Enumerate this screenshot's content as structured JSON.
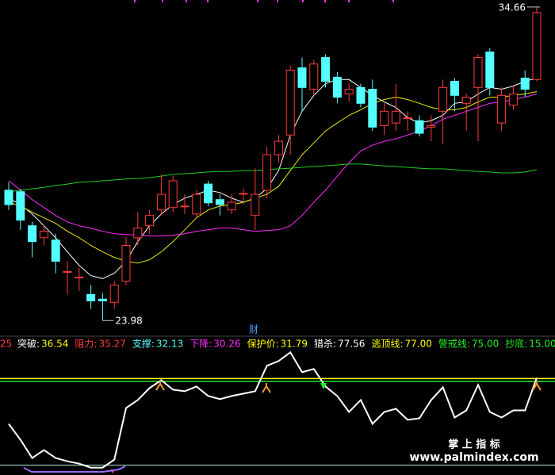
{
  "chart_data": [
    {
      "type": "candlestick",
      "ylim": [
        23.5,
        34.9
      ],
      "up_color": "#ff3b3b",
      "down_color": "#54ffff",
      "open": [
        28.42,
        28.37,
        27.21,
        26.8,
        26.72,
        25.65,
        25.46,
        24.87,
        24.71,
        24.6,
        25.32,
        26.8,
        27.21,
        27.75,
        27.83,
        27.88,
        27.61,
        28.63,
        28.1,
        27.75,
        28.31,
        27.56,
        28.42,
        29.63,
        30.3,
        32.59,
        31.86,
        32.94,
        32.27,
        31.7,
        31.92,
        31.86,
        30.62,
        30.71,
        30.89,
        30.79,
        30.57,
        31.11,
        32.13,
        31.38,
        31.92,
        33.13,
        30.71,
        31.32,
        32.24,
        32.19
      ],
      "close": [
        27.93,
        27.4,
        26.67,
        27.02,
        26.0,
        25.65,
        25.46,
        24.65,
        24.65,
        25.19,
        26.54,
        27.13,
        27.56,
        28.28,
        28.74,
        27.88,
        28.28,
        27.99,
        27.93,
        28.01,
        28.31,
        28.28,
        29.63,
        30.09,
        32.51,
        31.92,
        32.72,
        32.13,
        31.59,
        31.86,
        31.38,
        30.57,
        31.11,
        31.11,
        30.89,
        30.36,
        30.62,
        31.92,
        31.65,
        31.59,
        32.94,
        31.92,
        31.65,
        31.7,
        31.86,
        34.47
      ],
      "high": [
        28.69,
        28.47,
        27.34,
        27.21,
        26.94,
        26.0,
        25.78,
        25.19,
        24.92,
        25.32,
        26.8,
        27.67,
        27.75,
        28.96,
        28.9,
        28.28,
        28.42,
        28.74,
        28.28,
        28.28,
        28.47,
        29.17,
        29.9,
        30.3,
        32.67,
        32.94,
        32.86,
        33.05,
        32.45,
        32.05,
        32.05,
        32.19,
        31.38,
        32.05,
        31.11,
        30.97,
        30.97,
        32.19,
        32.24,
        31.7,
        33.05,
        33.26,
        31.92,
        31.97,
        32.51,
        34.66
      ],
      "low": [
        27.75,
        27.07,
        26.13,
        26.54,
        25.59,
        24.87,
        24.98,
        24.38,
        23.98,
        24.38,
        25.19,
        26.54,
        26.94,
        27.56,
        27.67,
        27.61,
        27.48,
        27.88,
        27.56,
        27.61,
        27.93,
        27.07,
        28.15,
        29.36,
        29.63,
        31.11,
        31.65,
        31.92,
        31.38,
        31.43,
        31.24,
        30.44,
        30.3,
        30.44,
        30.44,
        30.25,
        30.09,
        29.98,
        31.11,
        30.44,
        30.09,
        31.65,
        30.44,
        31.16,
        31.59,
        32.13
      ],
      "series": [
        {
          "color": "#ffffff",
          "values": [
            28.15,
            27.93,
            27.61,
            27.21,
            26.8,
            26.32,
            25.86,
            25.51,
            25.41,
            25.59,
            26.0,
            26.67,
            27.21,
            27.61,
            27.93,
            28.15,
            28.28,
            28.42,
            28.34,
            28.15,
            28.01,
            28.15,
            28.47,
            29.09,
            30.3,
            31.11,
            31.65,
            32.05,
            32.19,
            32.19,
            31.92,
            31.65,
            31.43,
            31.24,
            30.89,
            30.71,
            30.79,
            30.97,
            31.38,
            31.43,
            31.7,
            31.92,
            31.86,
            31.97,
            32.13,
            32.24
          ]
        },
        {
          "color": "#e8e800",
          "values": [
            28.01,
            27.88,
            27.67,
            27.48,
            27.29,
            27.02,
            26.8,
            26.54,
            26.32,
            26.13,
            26.0,
            25.94,
            26.05,
            26.32,
            26.67,
            27.07,
            27.48,
            27.75,
            27.88,
            27.93,
            28.01,
            28.15,
            28.28,
            28.55,
            29.09,
            29.63,
            30.03,
            30.44,
            30.71,
            30.97,
            31.16,
            31.38,
            31.51,
            31.59,
            31.51,
            31.38,
            31.24,
            31.16,
            31.16,
            31.24,
            31.43,
            31.59,
            31.59,
            31.65,
            31.7,
            31.78
          ]
        },
        {
          "color": "#ff2cff",
          "values": [
            28.74,
            28.42,
            28.1,
            27.83,
            27.56,
            27.34,
            27.21,
            27.13,
            27.02,
            26.94,
            26.91,
            26.89,
            26.86,
            26.86,
            26.89,
            26.94,
            27.02,
            27.07,
            27.13,
            27.13,
            27.07,
            27.02,
            27.05,
            27.07,
            27.21,
            27.56,
            28.01,
            28.42,
            28.9,
            29.36,
            29.76,
            29.95,
            30.09,
            30.17,
            30.3,
            30.44,
            30.62,
            30.84,
            30.97,
            31.11,
            31.24,
            31.38,
            31.43,
            31.51,
            31.59,
            31.7
          ]
        },
        {
          "color": "#22cc22",
          "values": [
            28.37,
            28.42,
            28.47,
            28.52,
            28.58,
            28.63,
            28.69,
            28.71,
            28.74,
            28.77,
            28.8,
            28.82,
            28.85,
            28.9,
            28.96,
            28.98,
            29.01,
            29.04,
            29.06,
            29.06,
            29.09,
            29.09,
            29.12,
            29.15,
            29.17,
            29.2,
            29.23,
            29.25,
            29.28,
            29.31,
            29.31,
            29.28,
            29.25,
            29.23,
            29.2,
            29.17,
            29.15,
            29.15,
            29.12,
            29.09,
            29.06,
            29.04,
            29.01,
            29.01,
            29.04,
            29.12
          ]
        }
      ],
      "marker": "财"
    },
    {
      "type": "line",
      "ylim": [
        8,
        105
      ],
      "header_fragment": ".25",
      "header": [
        {
          "name": "突破:",
          "value": 36.54,
          "color": "#ffffff",
          "value_color": "#ffff00"
        },
        {
          "name": "阻力:",
          "value": 35.27,
          "color": "#ff3b3b",
          "value_color": "#ff3b3b"
        },
        {
          "name": "支撑:",
          "value": 32.13,
          "color": "#54ffff",
          "value_color": "#54ffff"
        },
        {
          "name": "下降:",
          "value": 30.26,
          "color": "#ff2cff",
          "value_color": "#ff2cff"
        },
        {
          "name": "保护价:",
          "value": 31.79,
          "color": "#ffff00",
          "value_color": "#ffff00"
        },
        {
          "name": "猎杀:",
          "value": 77.56,
          "color": "#ffffff",
          "value_color": "#ffffff"
        },
        {
          "name": "逃顶线:",
          "value": {
            "value": 77,
            "label": "77.00"
          },
          "color": "#ffff00",
          "value_color": "#ffff00",
          "line": true
        },
        {
          "name": "警戒线:",
          "value": {
            "value": 75,
            "label": "75.00"
          },
          "color": "#22ee22",
          "value_color": "#22ee22",
          "line": true
        },
        {
          "name": "抄底:",
          "value": {
            "value": 15,
            "label": "15.00"
          },
          "color": "#22ee22",
          "value_color": "#22ee22",
          "line": true,
          "line_color": "#7fa39a"
        }
      ],
      "series": [
        {
          "color": "#ffffff",
          "values": [
            44.58,
            33.2,
            20.12,
            25.81,
            20.12,
            17.84,
            16.14,
            13.29,
            13.29,
            18.98,
            55.95,
            61.64,
            70.17,
            75.86,
            69.04,
            67.9,
            71.31,
            64.49,
            62.21,
            64.49,
            66.19,
            67.9,
            86.1,
            89.51,
            95.77,
            81.55,
            83.83,
            71.31,
            64.49,
            53.11,
            61.64,
            44.58,
            53.11,
            55.39,
            47.42,
            48.56,
            61.64,
            70.74,
            49.13,
            54.25,
            72.45,
            53.11,
            49.13,
            54.25,
            54.25,
            77.56
          ]
        }
      ]
    },
    {
      "type": "watermark",
      "title": "掌 上 指 标",
      "subtitle": "www.palmindex.com"
    }
  ]
}
